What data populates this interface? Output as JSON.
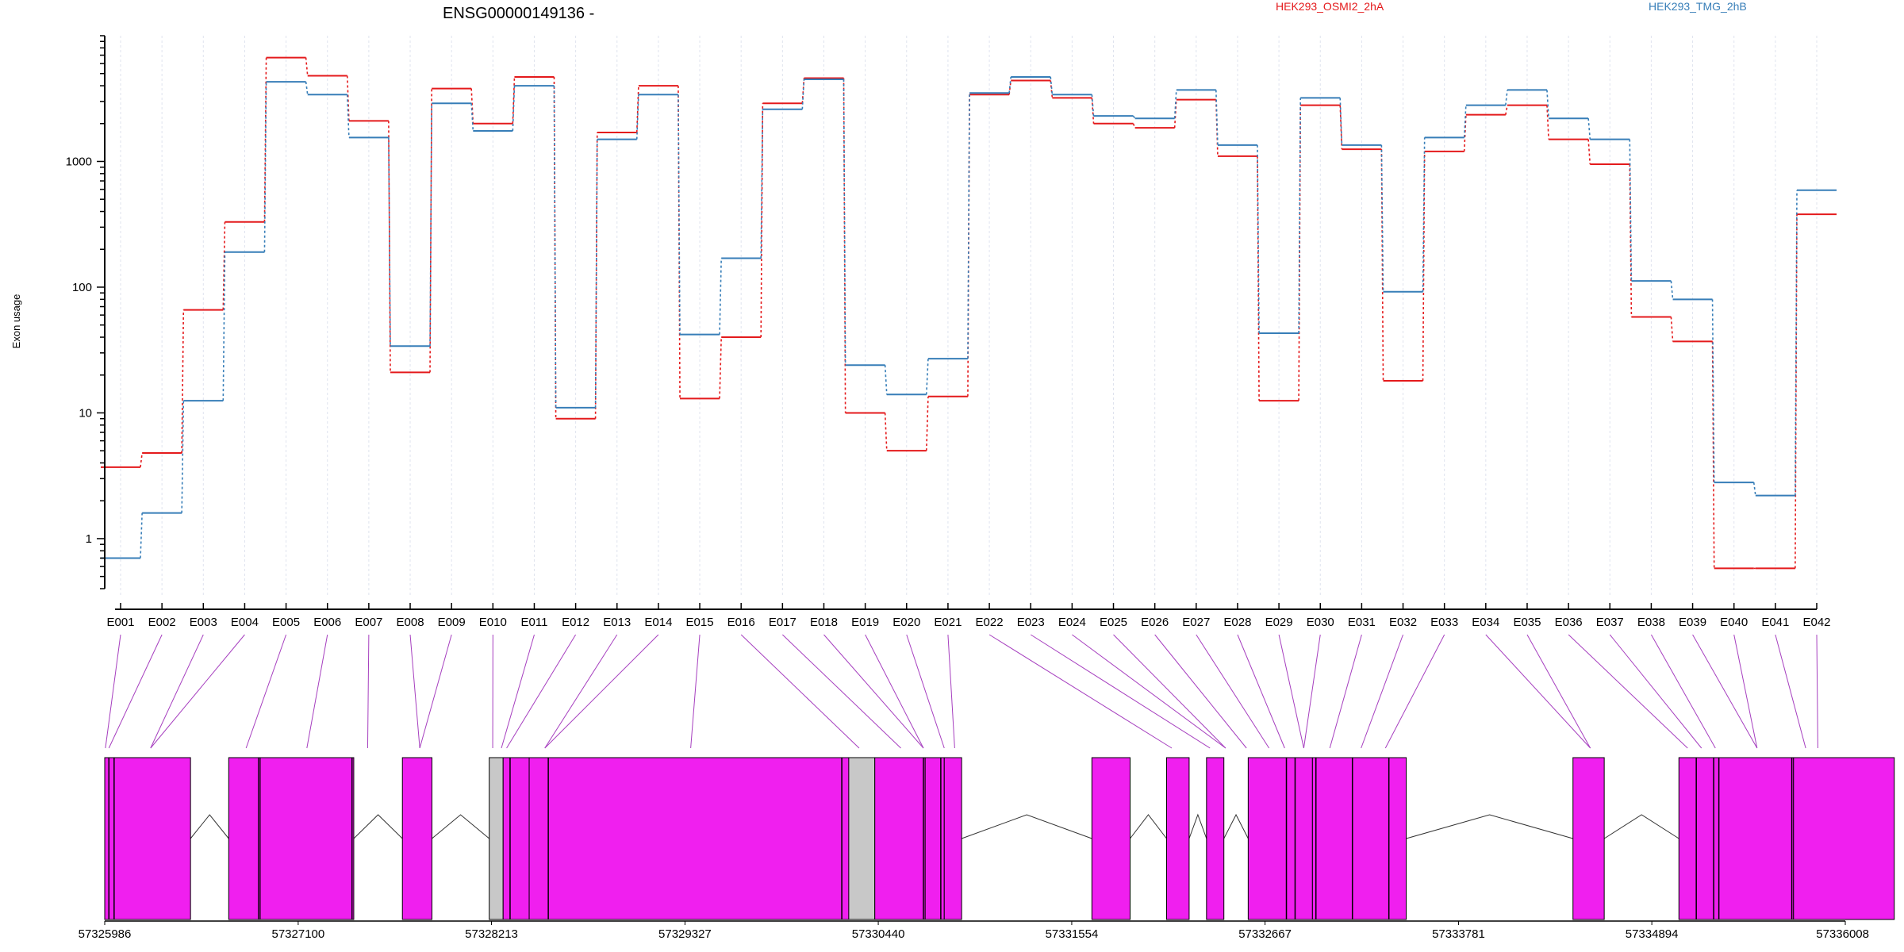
{
  "chart_data": {
    "type": "line",
    "title": "ENSG00000149136 -",
    "ylabel": "Exon usage",
    "xlabel": "",
    "yscale": "log",
    "ylim": [
      0.4,
      10000
    ],
    "ytick_labels": [
      "1",
      "10",
      "100",
      "1000"
    ],
    "ytick_values": [
      1,
      10,
      100,
      1000
    ],
    "grid": "vertical dotted",
    "legend": "top-right",
    "categories": [
      "E001",
      "E002",
      "E003",
      "E004",
      "E005",
      "E006",
      "E007",
      "E008",
      "E009",
      "E010",
      "E011",
      "E012",
      "E013",
      "E014",
      "E015",
      "E016",
      "E017",
      "E018",
      "E019",
      "E020",
      "E021",
      "E022",
      "E023",
      "E024",
      "E025",
      "E026",
      "E027",
      "E028",
      "E029",
      "E030",
      "E031",
      "E032",
      "E033",
      "E034",
      "E035",
      "E036",
      "E037",
      "E038",
      "E039",
      "E040",
      "E041",
      "E042"
    ],
    "series": [
      {
        "name": "HEK293_OSMI2_2hA",
        "color": "#e41a1c",
        "values": [
          3.7,
          4.8,
          66,
          330,
          6700,
          4800,
          2100,
          21,
          3800,
          2000,
          4700,
          9,
          1700,
          4000,
          13,
          40,
          2900,
          4600,
          10,
          5,
          13.5,
          3400,
          4400,
          3200,
          2000,
          1850,
          3100,
          1100,
          12.5,
          2800,
          1250,
          18,
          1200,
          2350,
          2800,
          1500,
          950,
          58,
          37,
          0.58,
          0.58,
          380
        ]
      },
      {
        "name": "HEK293_TMG_2hB",
        "color": "#377eb8",
        "values": [
          0.7,
          1.6,
          12.5,
          190,
          4300,
          3400,
          1550,
          34,
          2900,
          1750,
          4000,
          11,
          1500,
          3400,
          42,
          170,
          2600,
          4500,
          24,
          14,
          27,
          3500,
          4700,
          3400,
          2300,
          2200,
          3700,
          1350,
          43,
          3200,
          1350,
          92,
          1550,
          2800,
          3700,
          2200,
          1500,
          112,
          80,
          2.8,
          2.2,
          590
        ]
      }
    ],
    "gene_model": {
      "genomic_tick_labels": [
        "57325986",
        "57327100",
        "57328213",
        "57329327",
        "57330440",
        "57331554",
        "57332667",
        "57333781",
        "57334894",
        "57336008"
      ],
      "genomic_tick_values": [
        57325986,
        57327100,
        57328213,
        57329327,
        57330440,
        57331554,
        57332667,
        57333781,
        57334894,
        57336008
      ],
      "range": [
        57325986,
        57336008
      ],
      "exon_color": "#f01fef",
      "grey_color": "#c8c8c8",
      "blocks": [
        {
          "start": 57325986,
          "end": 57326480,
          "color": "magenta"
        },
        {
          "start": 57326700,
          "end": 57326870,
          "color": "magenta"
        },
        {
          "start": 57326870,
          "end": 57327420,
          "color": "magenta"
        },
        {
          "start": 57327700,
          "end": 57327870,
          "color": "magenta"
        },
        {
          "start": 57328200,
          "end": 57328280,
          "color": "grey"
        },
        {
          "start": 57328280,
          "end": 57328430,
          "color": "magenta"
        },
        {
          "start": 57328430,
          "end": 57330420,
          "color": "magenta"
        },
        {
          "start": 57330270,
          "end": 57330420,
          "color": "grey"
        },
        {
          "start": 57330420,
          "end": 57330710,
          "color": "magenta"
        },
        {
          "start": 57330710,
          "end": 57330820,
          "color": "magenta"
        },
        {
          "start": 57330820,
          "end": 57330920,
          "color": "magenta"
        },
        {
          "start": 57331670,
          "end": 57331890,
          "color": "magenta"
        },
        {
          "start": 57332100,
          "end": 57332230,
          "color": "magenta"
        },
        {
          "start": 57332330,
          "end": 57332430,
          "color": "magenta"
        },
        {
          "start": 57332570,
          "end": 57332790,
          "color": "magenta"
        },
        {
          "start": 57332790,
          "end": 57332940,
          "color": "magenta"
        },
        {
          "start": 57332940,
          "end": 57333170,
          "color": "magenta"
        },
        {
          "start": 57333170,
          "end": 57333380,
          "color": "magenta"
        },
        {
          "start": 57333380,
          "end": 57333480,
          "color": "magenta"
        },
        {
          "start": 57334440,
          "end": 57334620,
          "color": "magenta"
        },
        {
          "start": 57335050,
          "end": 57335250,
          "color": "magenta"
        },
        {
          "start": 57335250,
          "end": 57335710,
          "color": "magenta"
        },
        {
          "start": 57335710,
          "end": 57336290,
          "color": "magenta"
        }
      ],
      "exon_boundaries": [
        57326010,
        57326040,
        57326880,
        57327410,
        57328320,
        57328540,
        57330230,
        57330700,
        57330800,
        57332790,
        57332840,
        57332960,
        57333170,
        57333380,
        57335150,
        57335250,
        57335280,
        57335700
      ],
      "exon_anchors": [
        57325990,
        57326010,
        57326250,
        57326800,
        57327150,
        57327500,
        57327800,
        57328220,
        57328270,
        57328300,
        57328520,
        57329360,
        57330330,
        57330570,
        57330700,
        57330820,
        57330880,
        57332130,
        57332350,
        57332440,
        57332560,
        57332690,
        57332780,
        57332890,
        57333040,
        57333220,
        57333360,
        57334540,
        57335100,
        57335180,
        57335260,
        57335500,
        57335780,
        57335850
      ]
    }
  }
}
